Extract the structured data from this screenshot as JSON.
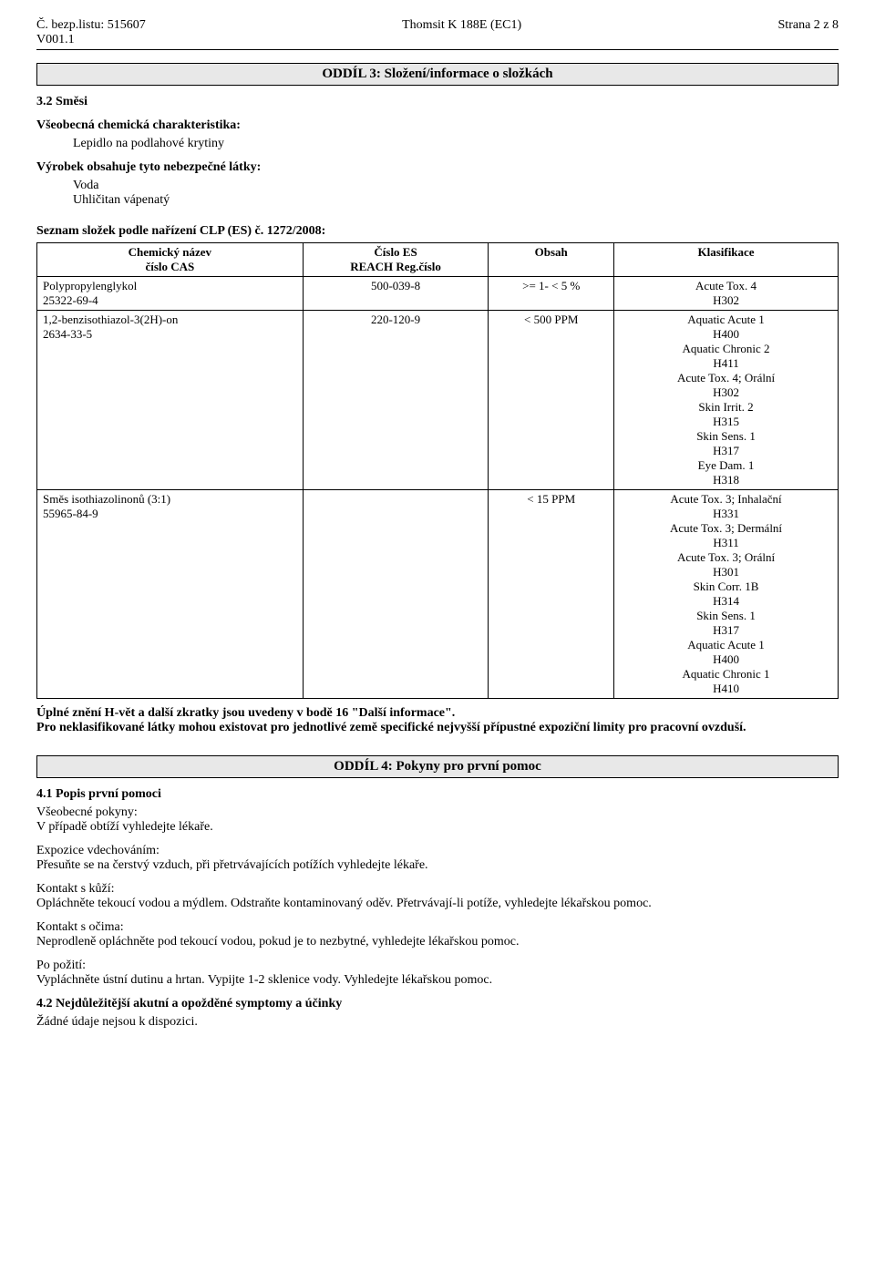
{
  "header": {
    "left_line1": "Č. bezp.listu: 515607",
    "left_line2": "V001.1",
    "center": "Thomsit K 188E (EC1)",
    "right": "Strana 2 z 8"
  },
  "section3": {
    "title": "ODDÍL 3: Složení/informace o složkách",
    "sub1": "3.2 Směsi",
    "char_label": "Všeobecná chemická charakteristika:",
    "char_value": "Lepidlo na podlahové krytiny",
    "hazard_label": "Výrobek obsahuje tyto nebezpečné látky:",
    "hazard_value1": "Voda",
    "hazard_value2": "Uhličitan vápenatý",
    "list_label": "Seznam složek podle nařízení CLP (ES) č. 1272/2008:",
    "table": {
      "col1_l1": "Chemický název",
      "col1_l2": "číslo CAS",
      "col2_l1": "Číslo ES",
      "col2_l2": "REACH Reg.číslo",
      "col3": "Obsah",
      "col4": "Klasifikace",
      "rows": [
        {
          "name": "Polypropylenglykol",
          "cas": "25322-69-4",
          "es": "500-039-8",
          "content": ">=   1- <   5 %",
          "classif": "Acute Tox. 4\nH302"
        },
        {
          "name": "1,2-benzisothiazol-3(2H)-on",
          "cas": "2634-33-5",
          "es": "220-120-9",
          "content": "< 500 PPM",
          "classif": "Aquatic Acute 1\nH400\nAquatic Chronic 2\nH411\nAcute Tox. 4;  Orální\nH302\nSkin Irrit. 2\nH315\nSkin Sens. 1\nH317\nEye Dam. 1\nH318"
        },
        {
          "name": "Směs isothiazolinonů (3:1)",
          "cas": "55965-84-9",
          "es": "",
          "content": "<  15 PPM",
          "classif": "Acute Tox. 3;  Inhalační\nH331\nAcute Tox. 3;  Dermální\nH311\nAcute Tox. 3;  Orální\nH301\nSkin Corr. 1B\nH314\nSkin Sens. 1\nH317\nAquatic Acute 1\nH400\nAquatic Chronic 1\nH410"
        }
      ]
    },
    "footnote1": "Úplné znění H-vět a další zkratky jsou uvedeny v bodě 16 \"Další informace\".",
    "footnote2": "Pro neklasifikované látky mohou existovat pro jednotlivé země specifické nejvyšší přípustné expoziční limity pro pracovní ovzduší."
  },
  "section4": {
    "title": "ODDÍL 4: Pokyny pro první pomoc",
    "sub1": "4.1 Popis první pomoci",
    "general_label": "Všeobecné pokyny:",
    "general_text": "V případě obtíží vyhledejte lékaře.",
    "inhal_label": "Expozice vdechováním:",
    "inhal_text": "Přesuňte se na čerstvý vzduch, při přetrvávajících potížích vyhledejte lékaře.",
    "skin_label": "Kontakt s kůží:",
    "skin_text": "Opláchněte tekoucí vodou a mýdlem. Odstraňte kontaminovaný oděv. Přetrvávají-li potíže, vyhledejte lékařskou pomoc.",
    "eyes_label": "Kontakt s očima:",
    "eyes_text": "Neprodleně opláchněte pod tekoucí vodou, pokud je to nezbytné, vyhledejte lékařskou pomoc.",
    "ingest_label": "Po požití:",
    "ingest_text": "Vypláchněte ústní dutinu a hrtan. Vypijte 1-2 sklenice vody. Vyhledejte lékařskou pomoc.",
    "sub2": "4.2 Nejdůležitější akutní a opožděné symptomy a účinky",
    "sub2_text": "Žádné údaje nejsou k dispozici."
  }
}
